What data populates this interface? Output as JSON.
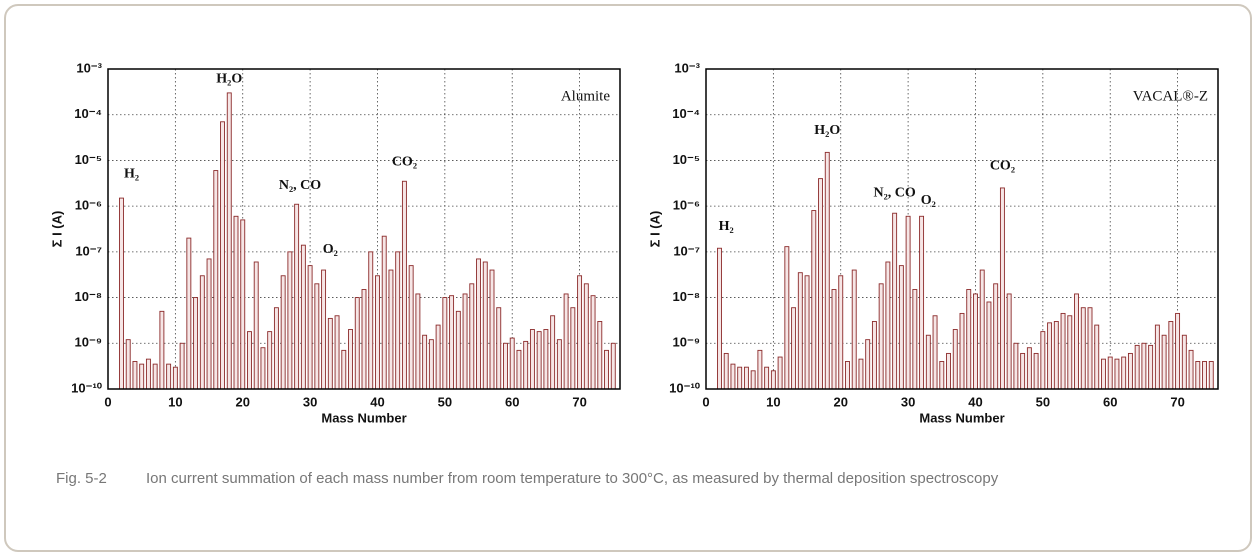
{
  "chart_data": [
    {
      "type": "bar",
      "label": "Alumite",
      "xlabel": "Mass Number",
      "ylabel": "Σ I (A)",
      "color": "#8b2a2a",
      "log_y": true,
      "grid": true,
      "annotations": [
        "H₂",
        "H₂O",
        "N₂, CO",
        "O₂",
        "CO₂"
      ],
      "x": [
        2,
        3,
        4,
        5,
        6,
        7,
        8,
        9,
        10,
        11,
        12,
        13,
        14,
        15,
        16,
        17,
        18,
        19,
        20,
        21,
        22,
        23,
        24,
        25,
        26,
        27,
        28,
        29,
        30,
        31,
        32,
        33,
        34,
        35,
        36,
        37,
        38,
        39,
        40,
        41,
        42,
        43,
        44,
        45,
        46,
        47,
        48,
        49,
        50,
        51,
        52,
        53,
        54,
        55,
        56,
        57,
        58,
        59,
        60,
        61,
        62,
        63,
        64,
        65,
        66,
        67,
        68,
        69,
        70,
        71,
        72,
        73,
        74,
        75
      ],
      "values": [
        1.5e-06,
        1.2e-09,
        4e-10,
        3.5e-10,
        4.5e-10,
        3.5e-10,
        5e-09,
        3.5e-10,
        3e-10,
        1e-09,
        2e-07,
        1e-08,
        3e-08,
        7e-08,
        6e-06,
        7e-05,
        0.0003,
        6e-07,
        5e-07,
        1.8e-09,
        6e-08,
        8e-10,
        1.8e-09,
        6e-09,
        3e-08,
        1e-07,
        1.1e-06,
        1.4e-07,
        5e-08,
        2e-08,
        4e-08,
        3.5e-09,
        4e-09,
        7e-10,
        2e-09,
        1e-08,
        1.5e-08,
        1e-07,
        3e-08,
        2.2e-07,
        4e-08,
        1e-07,
        3.5e-06,
        5e-08,
        1.2e-08,
        1.5e-09,
        1.2e-09,
        2.5e-09,
        1e-08,
        1.1e-08,
        5e-09,
        1.2e-08,
        2e-08,
        7e-08,
        6e-08,
        4e-08,
        6e-09,
        1e-09,
        1.3e-09,
        7e-10,
        1.1e-09,
        2e-09,
        1.8e-09,
        2e-09,
        4e-09,
        1.2e-09,
        1.2e-08,
        6e-09,
        3e-08,
        2e-08,
        1.1e-08,
        3e-09,
        7e-10,
        1e-09
      ],
      "xlim": [
        0,
        76
      ],
      "xticks": [
        0,
        10,
        20,
        30,
        40,
        50,
        60,
        70
      ],
      "ylim": [
        1e-10,
        0.001
      ],
      "yticks": [
        {
          "value": 1e-10,
          "label": "10⁻¹⁰"
        },
        {
          "value": 1e-09,
          "label": "10⁻⁹"
        },
        {
          "value": 1e-08,
          "label": "10⁻⁸"
        },
        {
          "value": 1e-07,
          "label": "10⁻⁷"
        },
        {
          "value": 1e-06,
          "label": "10⁻⁶"
        },
        {
          "value": 1e-05,
          "label": "10⁻⁵"
        },
        {
          "value": 0.0001,
          "label": "10⁻⁴"
        },
        {
          "value": 0.001,
          "label": "10⁻³"
        }
      ]
    },
    {
      "type": "bar",
      "label": "VACAL®-Z",
      "xlabel": "Mass Number",
      "ylabel": "Σ I (A)",
      "color": "#8b2a2a",
      "log_y": true,
      "grid": true,
      "annotations": [
        "H₂",
        "H₂O",
        "N₂, CO",
        "O₂",
        "CO₂"
      ],
      "x": [
        2,
        3,
        4,
        5,
        6,
        7,
        8,
        9,
        10,
        11,
        12,
        13,
        14,
        15,
        16,
        17,
        18,
        19,
        20,
        21,
        22,
        23,
        24,
        25,
        26,
        27,
        28,
        29,
        30,
        31,
        32,
        33,
        34,
        35,
        36,
        37,
        38,
        39,
        40,
        41,
        42,
        43,
        44,
        45,
        46,
        47,
        48,
        49,
        50,
        51,
        52,
        53,
        54,
        55,
        56,
        57,
        58,
        59,
        60,
        61,
        62,
        63,
        64,
        65,
        66,
        67,
        68,
        69,
        70,
        71,
        72,
        73,
        74,
        75
      ],
      "values": [
        1.2e-07,
        6e-10,
        3.5e-10,
        3e-10,
        3e-10,
        2.5e-10,
        7e-10,
        3e-10,
        2.5e-10,
        5e-10,
        1.3e-07,
        6e-09,
        3.5e-08,
        3e-08,
        8e-07,
        4e-06,
        1.5e-05,
        1.5e-08,
        3e-08,
        4e-10,
        4e-08,
        4.5e-10,
        1.2e-09,
        3e-09,
        2e-08,
        6e-08,
        7e-07,
        5e-08,
        6e-07,
        1.5e-08,
        6e-07,
        1.5e-09,
        4e-09,
        4e-10,
        6e-10,
        2e-09,
        4.5e-09,
        1.5e-08,
        1.2e-08,
        4e-08,
        8e-09,
        2e-08,
        2.5e-06,
        1.2e-08,
        1e-09,
        6e-10,
        8e-10,
        6e-10,
        1.8e-09,
        2.8e-09,
        3e-09,
        4.5e-09,
        4e-09,
        1.2e-08,
        6e-09,
        6e-09,
        2.5e-09,
        4.5e-10,
        5e-10,
        4.5e-10,
        5e-10,
        6e-10,
        9e-10,
        1e-09,
        9e-10,
        2.5e-09,
        1.5e-09,
        3e-09,
        4.5e-09,
        1.5e-09,
        7e-10,
        4e-10,
        4e-10,
        4e-10
      ],
      "xlim": [
        0,
        76
      ],
      "xticks": [
        0,
        10,
        20,
        30,
        40,
        50,
        60,
        70
      ],
      "ylim": [
        1e-10,
        0.001
      ],
      "yticks": [
        {
          "value": 1e-10,
          "label": "10⁻¹⁰"
        },
        {
          "value": 1e-09,
          "label": "10⁻⁹"
        },
        {
          "value": 1e-08,
          "label": "10⁻⁸"
        },
        {
          "value": 1e-07,
          "label": "10⁻⁷"
        },
        {
          "value": 1e-06,
          "label": "10⁻⁶"
        },
        {
          "value": 1e-05,
          "label": "10⁻⁵"
        },
        {
          "value": 0.0001,
          "label": "10⁻⁴"
        },
        {
          "value": 0.001,
          "label": "10⁻³"
        }
      ]
    }
  ],
  "caption": {
    "number": "Fig. 5-2",
    "text": "Ion current summation of each mass number from room temperature to 300°C, as measured by thermal deposition spectroscopy"
  }
}
